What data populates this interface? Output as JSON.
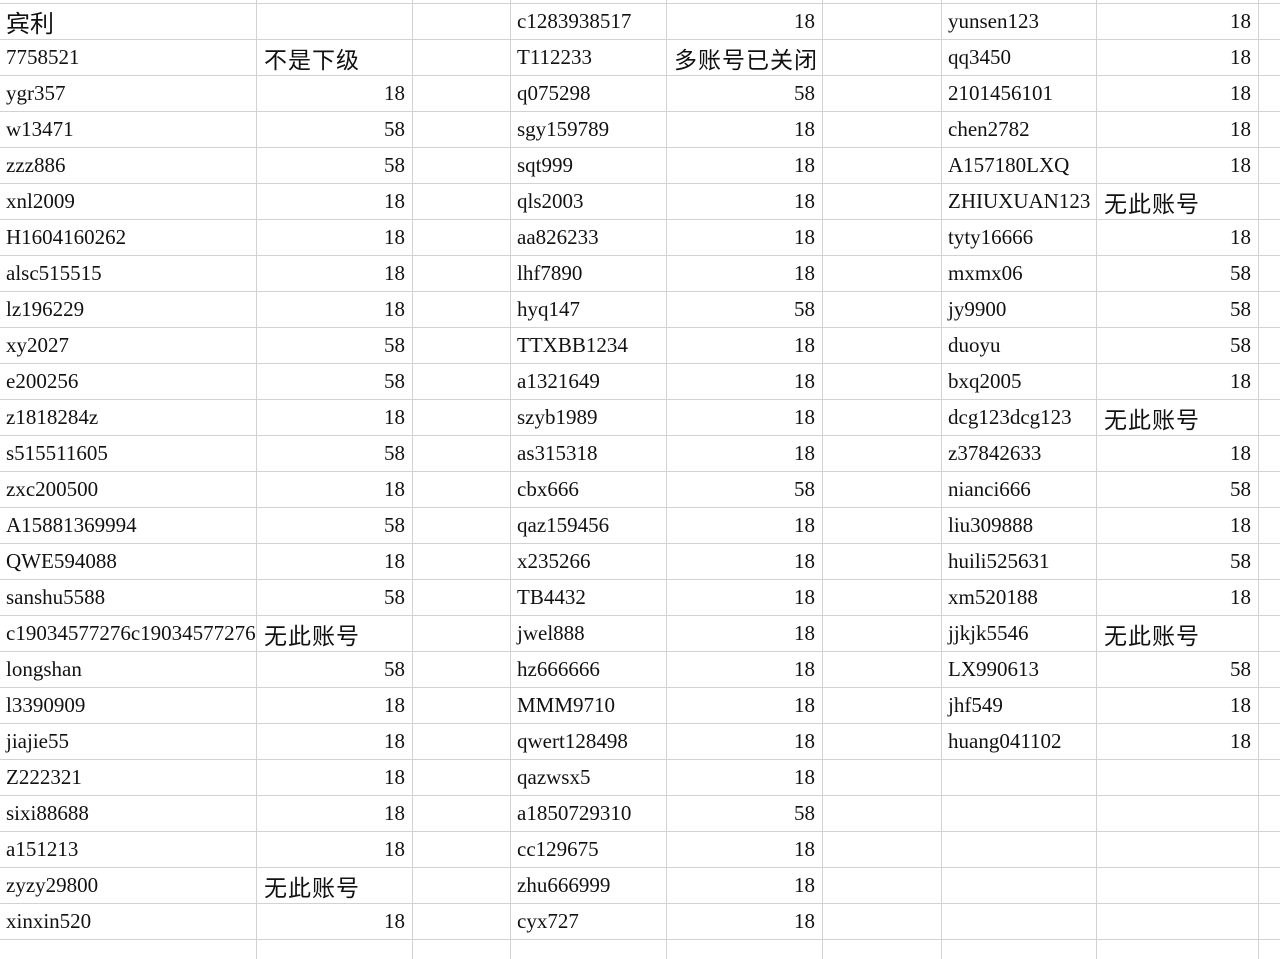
{
  "theme": {
    "background": "#ffffff",
    "grid_color": "#d2d2d2",
    "text_color": "#111111"
  },
  "table": {
    "title_cell": "宾利",
    "status_labels": {
      "not_subordinate": "不是下级",
      "multi_account_closed": "多账号已关闭",
      "no_such_account": "无此账号"
    },
    "rows": [
      [
        "宾利",
        "",
        "c1283938517",
        "18",
        "yunsen123",
        "18"
      ],
      [
        "7758521",
        "不是下级",
        "T112233",
        "多账号已关闭",
        "qq3450",
        "18"
      ],
      [
        "ygr357",
        "18",
        "q075298",
        "58",
        "2101456101",
        "18"
      ],
      [
        "w13471",
        "58",
        "sgy159789",
        "18",
        "chen2782",
        "18"
      ],
      [
        "zzz886",
        "58",
        "sqt999",
        "18",
        "A157180LXQ",
        "18"
      ],
      [
        "xnl2009",
        "18",
        "qls2003",
        "18",
        "ZHIUXUAN123",
        "无此账号"
      ],
      [
        "H1604160262",
        "18",
        "aa826233",
        "18",
        "tyty16666",
        "18"
      ],
      [
        "alsc515515",
        "18",
        "lhf7890",
        "18",
        "mxmx06",
        "58"
      ],
      [
        "lz196229",
        "18",
        "hyq147",
        "58",
        "jy9900",
        "58"
      ],
      [
        "xy2027",
        "58",
        "TTXBB1234",
        "18",
        "duoyu",
        "58"
      ],
      [
        "e200256",
        "58",
        "a1321649",
        "18",
        "bxq2005",
        "18"
      ],
      [
        "z1818284z",
        "18",
        "szyb1989",
        "18",
        "dcg123dcg123",
        "无此账号"
      ],
      [
        "s515511605",
        "58",
        "as315318",
        "18",
        "z37842633",
        "18"
      ],
      [
        "zxc200500",
        "18",
        "cbx666",
        "58",
        "nianci666",
        "58"
      ],
      [
        "A15881369994",
        "58",
        "qaz159456",
        "18",
        "liu309888",
        "18"
      ],
      [
        "QWE594088",
        "18",
        "x235266",
        "18",
        "huili525631",
        "58"
      ],
      [
        "sanshu5588",
        "58",
        "TB4432",
        "18",
        "xm520188",
        "18"
      ],
      [
        "c19034577276c19034577276",
        "无此账号",
        "jwel888",
        "18",
        "jjkjk5546",
        "无此账号"
      ],
      [
        "longshan",
        "58",
        "hz666666",
        "18",
        "LX990613",
        "58"
      ],
      [
        "l3390909",
        "18",
        "MMM9710",
        "18",
        "jhf549",
        "18"
      ],
      [
        "jiajie55",
        "18",
        "qwert128498",
        "18",
        "huang041102",
        "18"
      ],
      [
        "Z222321",
        "18",
        "qazwsx5",
        "18",
        "",
        ""
      ],
      [
        "sixi88688",
        "18",
        "a1850729310",
        "58",
        "",
        ""
      ],
      [
        "a151213",
        "18",
        "cc129675",
        "18",
        "",
        ""
      ],
      [
        "zyzy29800",
        "无此账号",
        "zhu666999",
        "18",
        "",
        ""
      ],
      [
        "xinxin520",
        "18",
        "cyx727",
        "18",
        "",
        ""
      ]
    ]
  }
}
